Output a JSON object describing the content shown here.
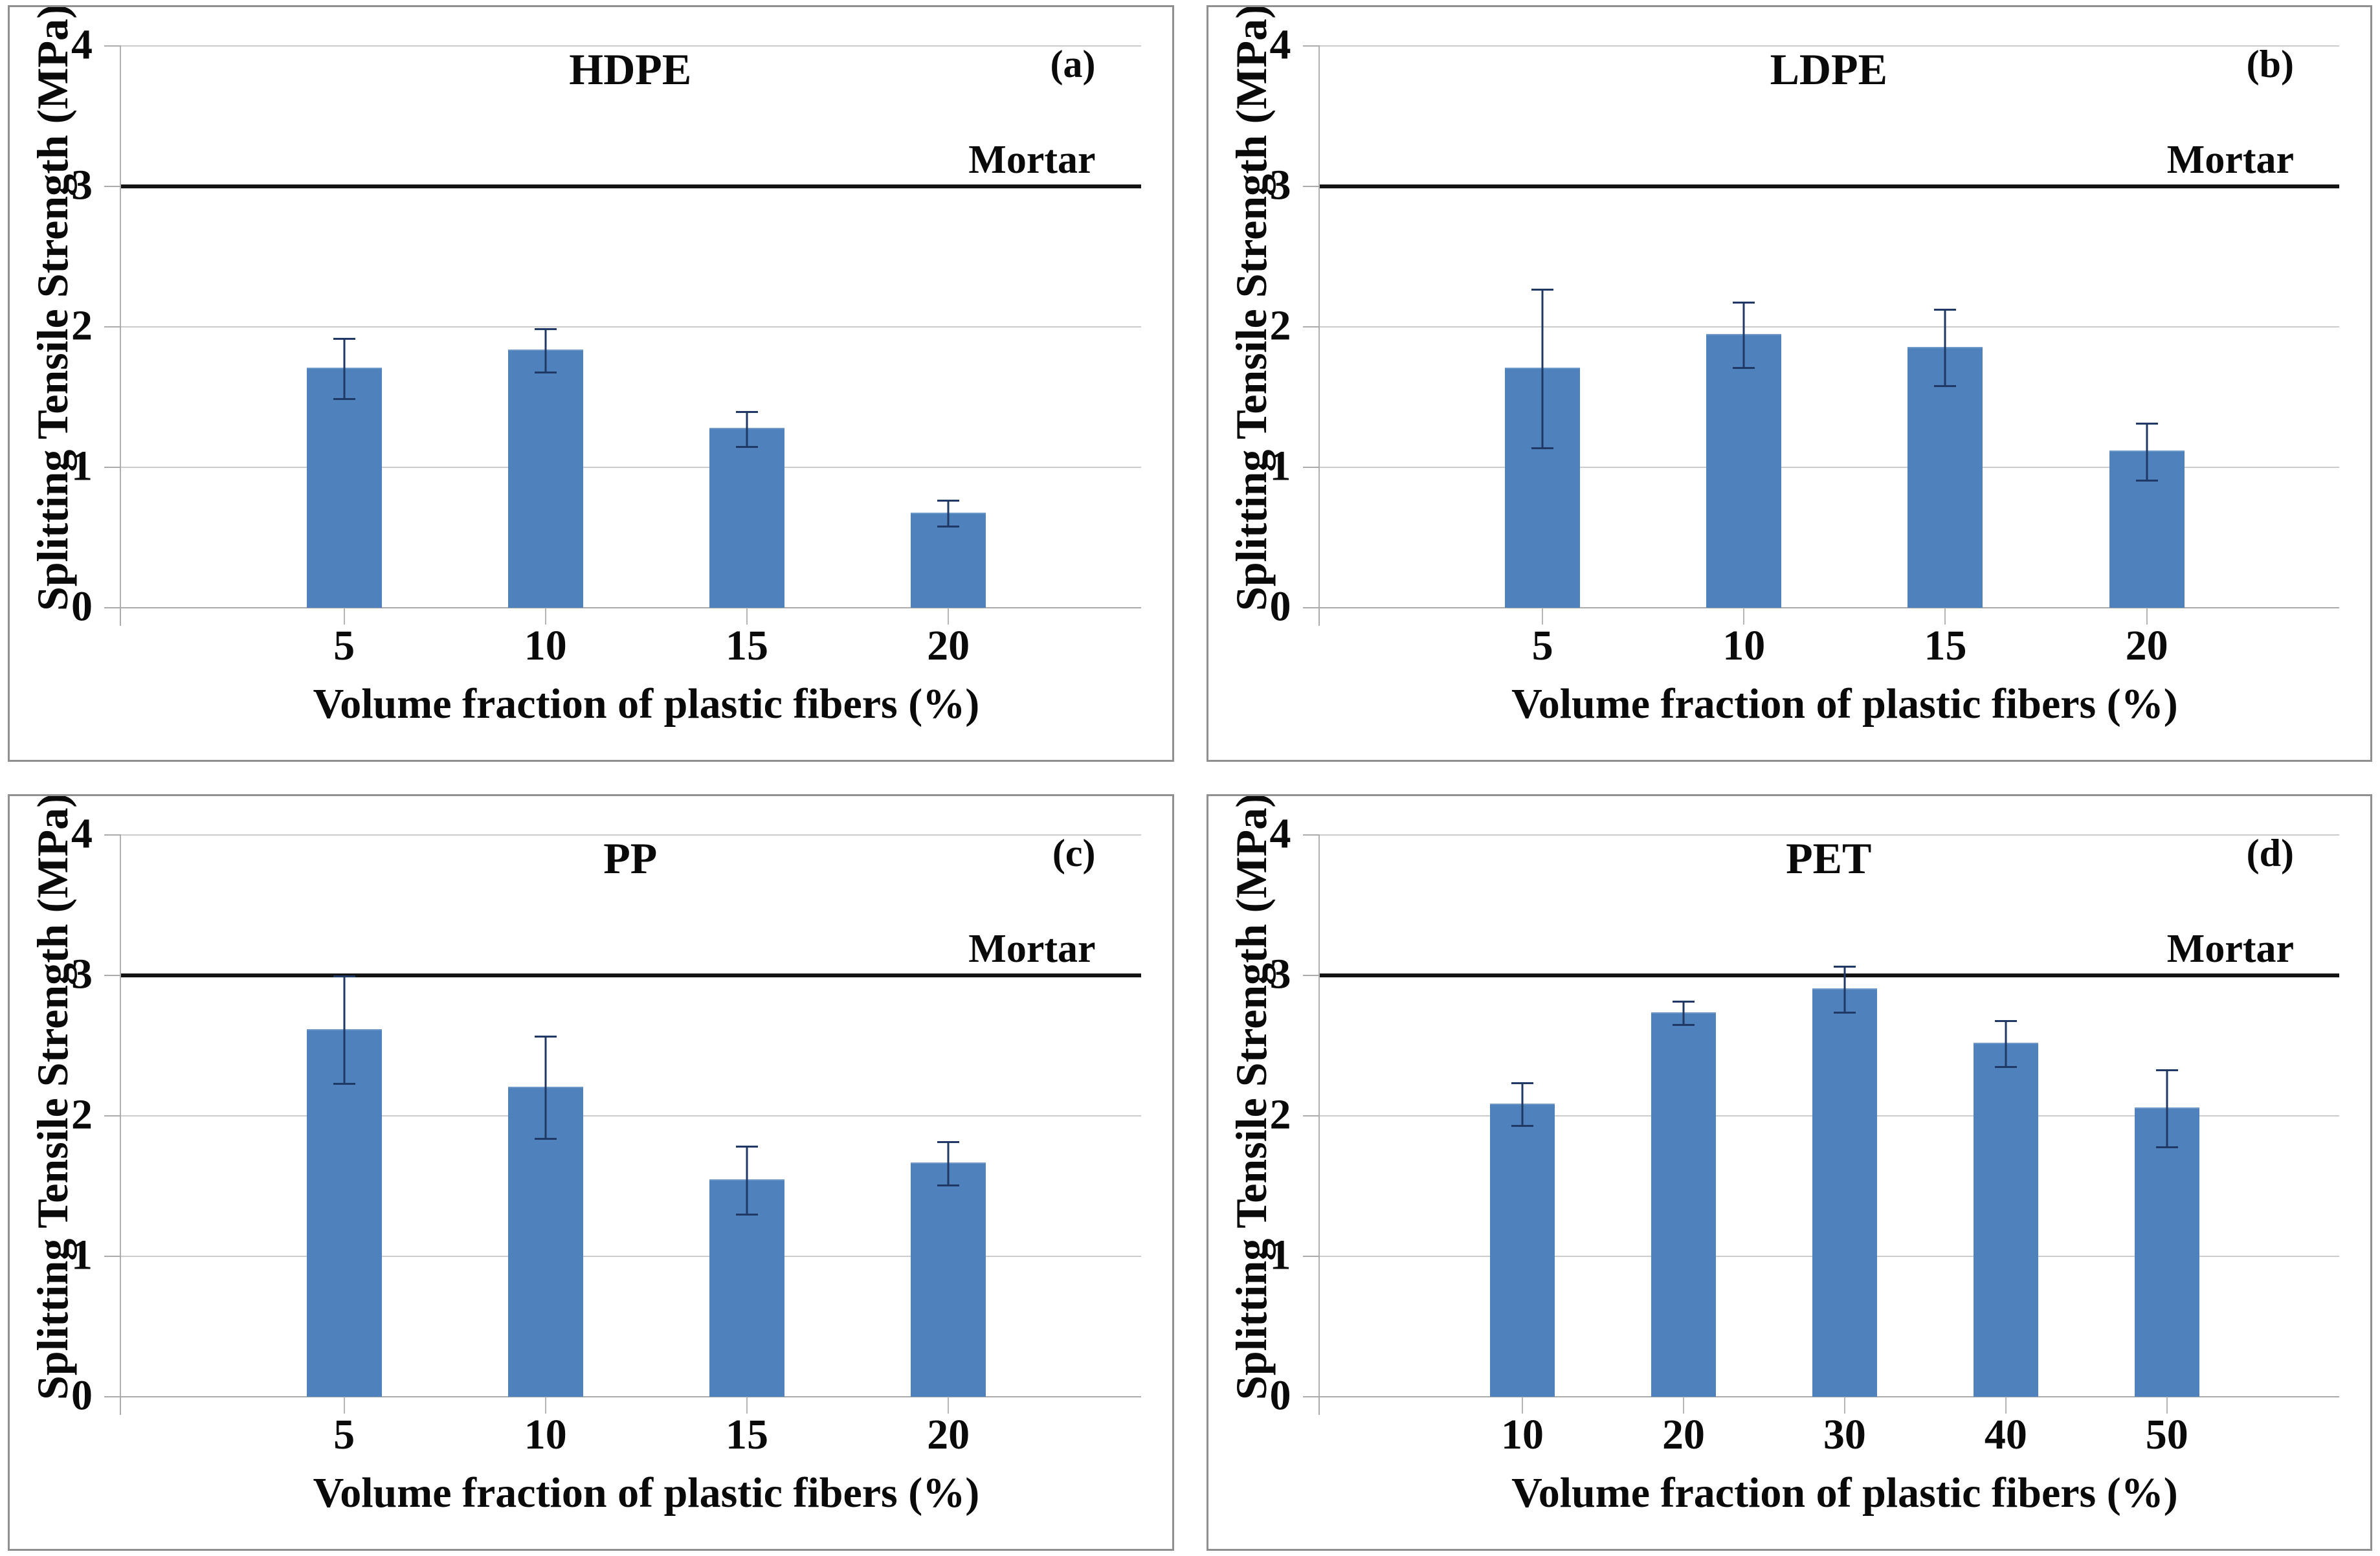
{
  "figure": {
    "ylabel": "Splitting Tensile Strength (MPa)",
    "xlabel": "Volume fraction of plastic fibers (%)",
    "reference_label": "Mortar"
  },
  "colors": {
    "bar": "#4f81bd",
    "error_bar": "#1f3864",
    "reference_line": "#141414",
    "gridline": "#cccccc",
    "axis": "#ababab",
    "panel_border": "#8f8f8f",
    "text": "#0a0a0a"
  },
  "chart_data": [
    {
      "type": "bar",
      "panel": "(a)",
      "title": "HDPE",
      "xlabel": "Volume fraction of plastic fibers (%)",
      "ylabel": "Splitting Tensile Strength (MPa)",
      "categories": [
        "5",
        "10",
        "15",
        "20"
      ],
      "values": [
        1.7,
        1.83,
        1.27,
        0.67
      ],
      "errors": [
        0.22,
        0.16,
        0.13,
        0.1
      ],
      "reference_line": {
        "label": "Mortar",
        "value": 3.0
      },
      "ylim": [
        0,
        4
      ],
      "yticks": [
        0,
        1,
        2,
        3,
        4
      ],
      "grid": true,
      "legend": "none"
    },
    {
      "type": "bar",
      "panel": "(b)",
      "title": "LDPE",
      "xlabel": "Volume fraction of plastic fibers (%)",
      "ylabel": "Splitting Tensile Strength (MPa)",
      "categories": [
        "5",
        "10",
        "15",
        "20"
      ],
      "values": [
        1.7,
        1.94,
        1.85,
        1.11
      ],
      "errors": [
        0.57,
        0.24,
        0.28,
        0.21
      ],
      "reference_line": {
        "label": "Mortar",
        "value": 3.0
      },
      "ylim": [
        0,
        4
      ],
      "yticks": [
        0,
        1,
        2,
        3,
        4
      ],
      "grid": true,
      "legend": "none"
    },
    {
      "type": "bar",
      "panel": "(c)",
      "title": "PP",
      "xlabel": "Volume fraction of plastic fibers (%)",
      "ylabel": "Splitting Tensile Strength (MPa)",
      "categories": [
        "5",
        "10",
        "15",
        "20"
      ],
      "values": [
        2.61,
        2.2,
        1.54,
        1.66
      ],
      "errors": [
        0.39,
        0.37,
        0.25,
        0.16
      ],
      "reference_line": {
        "label": "Mortar",
        "value": 3.0
      },
      "ylim": [
        0,
        4
      ],
      "yticks": [
        0,
        1,
        2,
        3,
        4
      ],
      "grid": true,
      "legend": "none"
    },
    {
      "type": "bar",
      "panel": "(d)",
      "title": "PET",
      "xlabel": "Volume fraction of plastic fibers (%)",
      "ylabel": "Splitting Tensile Strength (MPa)",
      "categories": [
        "10",
        "20",
        "30",
        "40",
        "50"
      ],
      "values": [
        2.08,
        2.73,
        2.9,
        2.51,
        2.05
      ],
      "errors": [
        0.16,
        0.09,
        0.17,
        0.17,
        0.28
      ],
      "reference_line": {
        "label": "Mortar",
        "value": 3.0
      },
      "ylim": [
        0,
        4
      ],
      "yticks": [
        0,
        1,
        2,
        3,
        4
      ],
      "grid": true,
      "legend": "none"
    }
  ]
}
